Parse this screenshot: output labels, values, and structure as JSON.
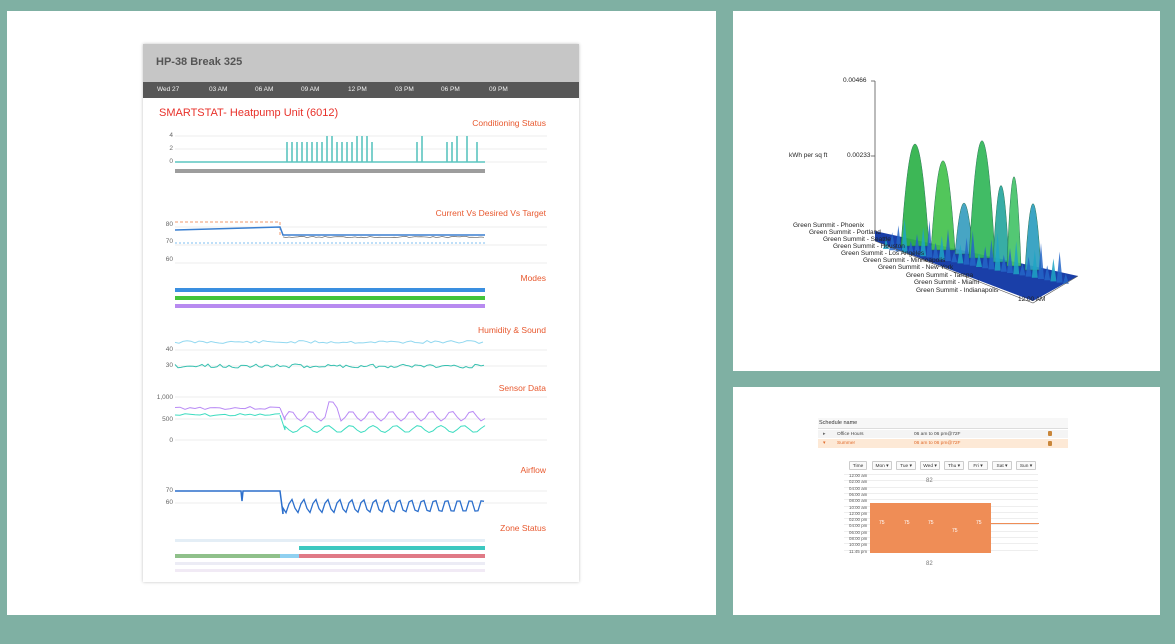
{
  "dashboard": {
    "title": "HP-38 Break 325",
    "time_labels": [
      "Wed 27",
      "03 AM",
      "06 AM",
      "09 AM",
      "12 PM",
      "03 PM",
      "06 PM",
      "09 PM"
    ],
    "unit_title": "SMARTSTAT- Heatpump Unit (6012)",
    "sections": [
      {
        "title": "Conditioning Status",
        "ticks": [
          "4",
          "2",
          "0"
        ]
      },
      {
        "title": "Current Vs Desired Vs Target",
        "ticks": [
          "80",
          "70",
          "60"
        ]
      },
      {
        "title": "Modes",
        "ticks": []
      },
      {
        "title": "Humidity & Sound",
        "ticks": [
          "40",
          "30"
        ]
      },
      {
        "title": "Sensor Data",
        "ticks": [
          "1,000",
          "500",
          "0"
        ]
      },
      {
        "title": "Airflow",
        "ticks": [
          "70",
          "60"
        ]
      },
      {
        "title": "Zone Status",
        "ticks": []
      }
    ],
    "colors": {
      "header": "#c6c6c6",
      "timebar": "#575757",
      "title_red": "#e8312a",
      "section_orange": "#e8592f",
      "teal": "#5cc5c0",
      "blue": "#3a8fe0",
      "green": "#43c43a",
      "purple": "#b88af0"
    }
  },
  "surface_chart": {
    "z_axis_label": "kWh per sq ft",
    "z_ticks": [
      "0.00466",
      "0.00233"
    ],
    "locations": [
      "Green Summit - Phoenix",
      "Green Summit - Portland",
      "Green Summit - Seattle",
      "Green Summit - Houston",
      "Green Summit - Los Angeles",
      "Green Summit - Minneapolis",
      "Green Summit - New York",
      "Green Summit - Tampa",
      "Green Summit - Miami",
      "Green Summit - Indianapolis"
    ],
    "time_tick": "12:00 AM"
  },
  "schedule": {
    "header": "Schedule name",
    "rows": [
      {
        "arrow": "▸",
        "name": "Office Hours",
        "range": "06 am to 06 pm@72F",
        "delete_icon": "trash-icon"
      },
      {
        "arrow": "▾",
        "name": "Summer",
        "range": "06 am to 06 pm@72F",
        "delete_icon": "trash-icon"
      }
    ],
    "day_buttons": [
      "Time",
      "Mon ▾",
      "Tue ▾",
      "Wed ▾",
      "Thu ▾",
      "Fri ▾",
      "Sat ▾",
      "Sun ▾"
    ],
    "times": [
      "12:00 am",
      "02:00 am",
      "04:00 am",
      "06:00 am",
      "08:00 am",
      "10:00 am",
      "12:00 pm",
      "02:00 pm",
      "04:00 pm",
      "06:00 pm",
      "08:00 pm",
      "10:00 pm",
      "11:45 pm"
    ],
    "off_temp": "82",
    "block_temps": [
      "75",
      "75",
      "75",
      "75",
      "75"
    ],
    "block_color": "#ef8d56"
  }
}
